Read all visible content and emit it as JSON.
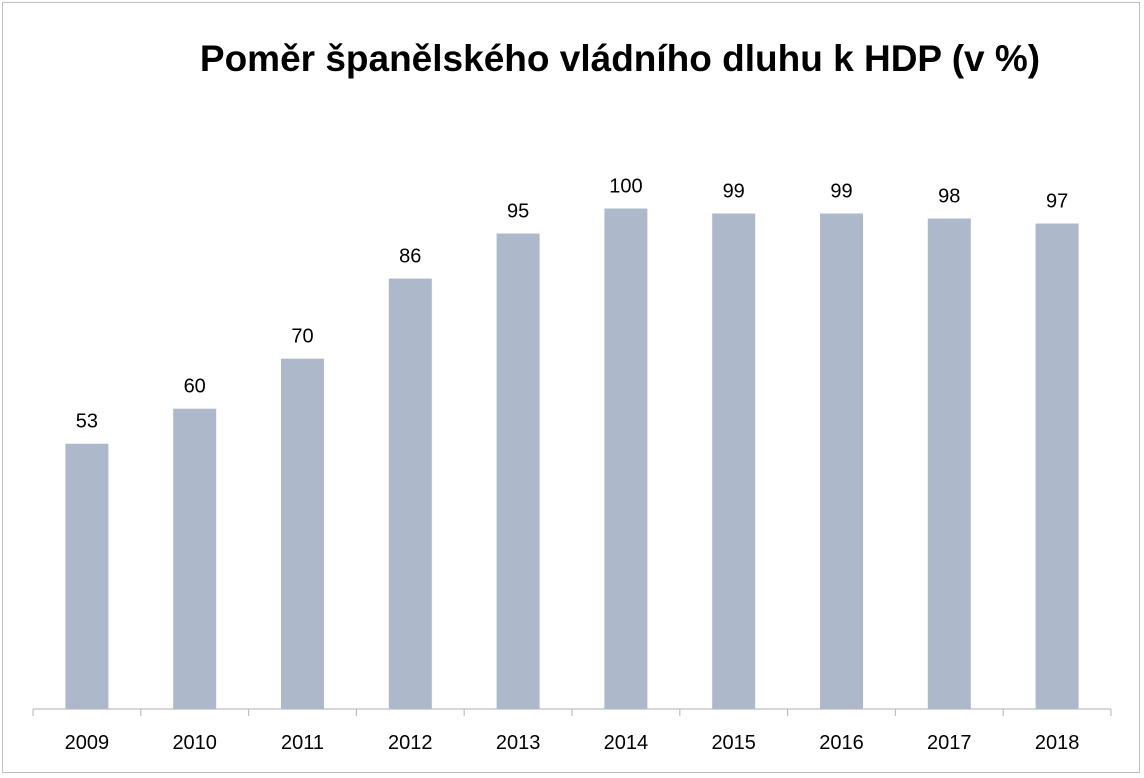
{
  "chart_data": {
    "type": "bar",
    "title": "Poměr španělského vládního dluhu k HDP (v %)",
    "categories": [
      "2009",
      "2010",
      "2011",
      "2012",
      "2013",
      "2014",
      "2015",
      "2016",
      "2017",
      "2018"
    ],
    "values": [
      53,
      60,
      70,
      86,
      95,
      100,
      99,
      99,
      98,
      97
    ],
    "data_labels": [
      "53",
      "60",
      "70",
      "86",
      "95",
      "100",
      "99",
      "99",
      "98",
      "97"
    ],
    "xlabel": "",
    "ylabel": "",
    "ylim": [
      0,
      100.5
    ],
    "grid": false,
    "legend": "none",
    "bar_color": "#adb9ca",
    "axis_color": "#bfbfbf"
  }
}
